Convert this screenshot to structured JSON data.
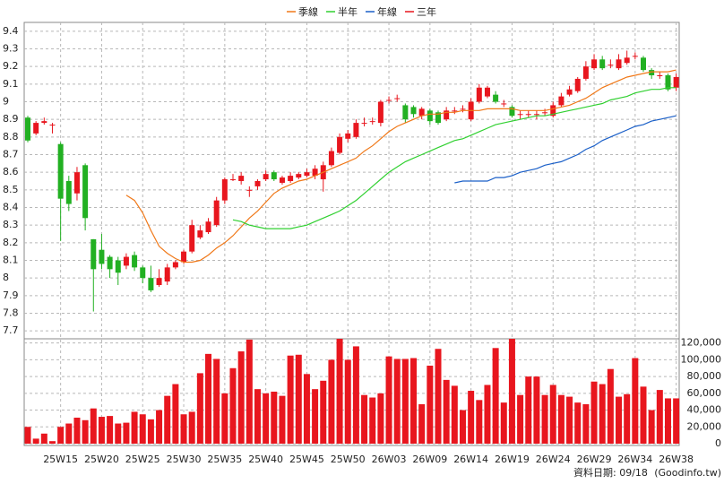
{
  "chart_data": {
    "type": "candlestick",
    "categories": [
      null,
      null,
      null,
      null,
      "25W15",
      null,
      null,
      null,
      null,
      "25W20",
      null,
      null,
      null,
      null,
      "25W25",
      null,
      null,
      null,
      null,
      "25W30",
      null,
      null,
      null,
      null,
      "25W35",
      null,
      null,
      null,
      null,
      "25W40",
      null,
      null,
      null,
      null,
      "25W45",
      null,
      null,
      null,
      null,
      "25W50",
      null,
      null,
      null,
      null,
      "26W03",
      null,
      null,
      null,
      null,
      "26W09",
      null,
      null,
      null,
      null,
      "26W14",
      null,
      null,
      null,
      null,
      "26W19",
      null,
      null,
      null,
      null,
      "26W24",
      null,
      null,
      null,
      null,
      "26W29",
      null,
      null,
      null,
      null,
      "26W34",
      null,
      null,
      null,
      null,
      "26W38"
    ],
    "open": [
      8.91,
      8.82,
      8.88,
      8.87,
      8.76,
      8.55,
      8.48,
      8.64,
      8.22,
      8.16,
      8.12,
      8.1,
      8.07,
      8.13,
      8.06,
      8.0,
      7.96,
      7.98,
      8.06,
      8.09,
      8.15,
      8.23,
      8.26,
      8.3,
      8.44,
      8.56,
      8.55,
      8.5,
      8.52,
      8.56,
      8.6,
      8.54,
      8.55,
      8.57,
      8.58,
      8.58,
      8.56,
      8.64,
      8.71,
      8.79,
      8.8,
      8.88,
      8.89,
      8.88,
      9.01,
      9.02,
      8.98,
      8.97,
      8.92,
      8.95,
      8.94,
      8.9,
      8.95,
      8.96,
      8.9,
      9.0,
      9.03,
      9.04,
      8.99,
      8.97,
      8.93,
      8.93,
      8.93,
      8.94,
      8.92,
      8.98,
      9.04,
      9.06,
      9.13,
      9.19,
      9.24,
      9.21,
      9.19,
      9.22,
      9.26,
      9.25,
      9.18,
      9.15,
      9.15,
      9.08
    ],
    "high": [
      8.92,
      8.89,
      8.91,
      8.88,
      8.77,
      8.58,
      8.63,
      8.65,
      8.22,
      8.25,
      8.13,
      8.12,
      8.14,
      8.15,
      8.07,
      8.07,
      8.05,
      8.08,
      8.1,
      8.16,
      8.33,
      8.3,
      8.34,
      8.46,
      8.57,
      8.59,
      8.6,
      8.52,
      8.56,
      8.61,
      8.61,
      8.58,
      8.6,
      8.6,
      8.62,
      8.64,
      8.66,
      8.74,
      8.82,
      8.84,
      8.9,
      8.91,
      8.91,
      9.01,
      9.03,
      9.04,
      8.99,
      8.98,
      8.97,
      8.96,
      8.95,
      8.97,
      8.97,
      8.98,
      9.02,
      9.1,
      9.09,
      9.06,
      9.01,
      8.98,
      8.95,
      8.95,
      8.95,
      8.96,
      9.0,
      9.05,
      9.09,
      9.14,
      9.23,
      9.27,
      9.26,
      9.24,
      9.27,
      9.29,
      9.28,
      9.26,
      9.19,
      9.17,
      9.16,
      9.16
    ],
    "low": [
      8.77,
      8.81,
      8.87,
      8.82,
      8.21,
      8.38,
      8.44,
      8.27,
      7.81,
      8.05,
      8.0,
      7.96,
      8.05,
      8.04,
      7.97,
      7.92,
      7.95,
      7.96,
      8.05,
      8.08,
      8.14,
      8.22,
      8.25,
      8.29,
      8.42,
      8.55,
      8.53,
      8.46,
      8.5,
      8.55,
      8.55,
      8.53,
      8.54,
      8.56,
      8.57,
      8.56,
      8.49,
      8.63,
      8.7,
      8.77,
      8.79,
      8.86,
      8.87,
      8.86,
      8.99,
      9.0,
      8.88,
      8.91,
      8.9,
      8.87,
      8.87,
      8.89,
      8.93,
      8.94,
      8.89,
      8.99,
      9.02,
      8.99,
      8.97,
      8.91,
      8.9,
      8.91,
      8.9,
      8.92,
      8.91,
      8.97,
      9.03,
      9.05,
      9.12,
      9.18,
      9.18,
      9.19,
      9.18,
      9.21,
      9.24,
      9.17,
      9.13,
      9.13,
      9.06,
      9.06
    ],
    "close": [
      8.78,
      8.88,
      8.89,
      8.87,
      8.45,
      8.42,
      8.6,
      8.34,
      8.05,
      8.08,
      8.05,
      8.03,
      8.12,
      8.06,
      8.0,
      7.93,
      8.0,
      8.06,
      8.09,
      8.15,
      8.3,
      8.27,
      8.32,
      8.44,
      8.56,
      8.56,
      8.58,
      8.5,
      8.55,
      8.59,
      8.56,
      8.57,
      8.58,
      8.59,
      8.6,
      8.62,
      8.64,
      8.72,
      8.8,
      8.82,
      8.88,
      8.88,
      8.89,
      9.0,
      9.01,
      9.02,
      8.9,
      8.93,
      8.96,
      8.89,
      8.88,
      8.95,
      8.95,
      8.96,
      9.0,
      9.08,
      9.08,
      9.0,
      8.99,
      8.92,
      8.93,
      8.93,
      8.93,
      8.94,
      8.98,
      9.03,
      9.07,
      9.13,
      9.2,
      9.24,
      9.19,
      9.21,
      9.24,
      9.25,
      9.26,
      9.18,
      9.15,
      9.15,
      9.07,
      9.14
    ],
    "up_color": "#e8161e",
    "down_color": "#22b022",
    "series": [
      {
        "name": "季線",
        "color": "#f07818",
        "values": [
          null,
          null,
          null,
          null,
          null,
          null,
          null,
          null,
          null,
          null,
          null,
          null,
          8.47,
          8.44,
          8.37,
          8.27,
          8.18,
          8.14,
          8.11,
          8.09,
          8.09,
          8.1,
          8.13,
          8.17,
          8.2,
          8.24,
          8.29,
          8.34,
          8.38,
          8.43,
          8.48,
          8.51,
          8.53,
          8.55,
          8.56,
          8.58,
          8.6,
          8.62,
          8.64,
          8.66,
          8.68,
          8.72,
          8.75,
          8.79,
          8.83,
          8.86,
          8.88,
          8.9,
          8.92,
          8.93,
          8.93,
          8.94,
          8.94,
          8.95,
          8.95,
          8.95,
          8.96,
          8.96,
          8.96,
          8.96,
          8.95,
          8.95,
          8.95,
          8.95,
          8.96,
          8.97,
          8.98,
          9.0,
          9.02,
          9.05,
          9.08,
          9.1,
          9.12,
          9.14,
          9.15,
          9.16,
          9.17,
          9.17,
          9.17,
          9.18
        ]
      },
      {
        "name": "半年",
        "color": "#30d030",
        "values": [
          null,
          null,
          null,
          null,
          null,
          null,
          null,
          null,
          null,
          null,
          null,
          null,
          null,
          null,
          null,
          null,
          null,
          null,
          null,
          null,
          null,
          null,
          null,
          null,
          null,
          8.33,
          8.32,
          8.3,
          8.29,
          8.28,
          8.28,
          8.28,
          8.28,
          8.29,
          8.3,
          8.32,
          8.34,
          8.36,
          8.38,
          8.41,
          8.44,
          8.48,
          8.52,
          8.56,
          8.6,
          8.63,
          8.66,
          8.68,
          8.7,
          8.72,
          8.74,
          8.76,
          8.78,
          8.79,
          8.81,
          8.83,
          8.85,
          8.87,
          8.88,
          8.89,
          8.9,
          8.91,
          8.92,
          8.92,
          8.93,
          8.94,
          8.95,
          8.96,
          8.97,
          8.98,
          8.99,
          9.01,
          9.02,
          9.03,
          9.05,
          9.06,
          9.07,
          9.07,
          9.08,
          9.08
        ]
      },
      {
        "name": "年線",
        "color": "#1a5fc8",
        "values": [
          null,
          null,
          null,
          null,
          null,
          null,
          null,
          null,
          null,
          null,
          null,
          null,
          null,
          null,
          null,
          null,
          null,
          null,
          null,
          null,
          null,
          null,
          null,
          null,
          null,
          null,
          null,
          null,
          null,
          null,
          null,
          null,
          null,
          null,
          null,
          null,
          null,
          null,
          null,
          null,
          null,
          null,
          null,
          null,
          null,
          null,
          null,
          null,
          null,
          null,
          null,
          null,
          8.54,
          8.55,
          8.55,
          8.55,
          8.55,
          8.57,
          8.57,
          8.58,
          8.6,
          8.61,
          8.62,
          8.64,
          8.65,
          8.66,
          8.68,
          8.7,
          8.73,
          8.75,
          8.78,
          8.8,
          8.82,
          8.84,
          8.86,
          8.87,
          8.89,
          8.9,
          8.91,
          8.92
        ]
      },
      {
        "name": "三年",
        "color": "#e8161e"
      }
    ],
    "ylim": [
      7.65,
      9.45
    ],
    "yticks": [
      7.7,
      7.8,
      7.9,
      8,
      8.1,
      8.2,
      8.3,
      8.4,
      8.5,
      8.6,
      8.7,
      8.8,
      8.9,
      9,
      9.1,
      9.2,
      9.3,
      9.4
    ],
    "grid": true,
    "legend": "top",
    "volume": {
      "type": "bar",
      "color": "#e8161e",
      "values": [
        20000,
        6000,
        12000,
        3000,
        20000,
        24000,
        31000,
        28000,
        42000,
        32000,
        33000,
        24000,
        25000,
        38000,
        35000,
        29000,
        40000,
        57000,
        71000,
        35000,
        38000,
        84000,
        107000,
        101000,
        60000,
        90000,
        110000,
        124000,
        65000,
        60000,
        62000,
        57000,
        105000,
        106000,
        83000,
        65000,
        75000,
        100000,
        125000,
        100000,
        116000,
        58000,
        55000,
        60000,
        104000,
        101000,
        101000,
        102000,
        47000,
        93000,
        113000,
        76000,
        69000,
        40000,
        63000,
        52000,
        70000,
        114000,
        49000,
        125000,
        58000,
        80000,
        80000,
        58000,
        70000,
        58000,
        56000,
        49000,
        47000,
        74000,
        71000,
        89000,
        56000,
        59000,
        102000,
        68000,
        40000,
        64000,
        54000,
        54000
      ],
      "ylim": [
        0,
        125000
      ],
      "yticks": [
        0,
        {
          "value": 20000,
          "label": "20,000"
        },
        {
          "value": 40000,
          "label": "40,000"
        },
        {
          "value": 60000,
          "label": "60,000"
        },
        {
          "value": 80000,
          "label": "80,000"
        },
        {
          "value": 100000,
          "label": "100,000"
        },
        {
          "value": 120000,
          "label": "120,000"
        }
      ]
    },
    "date_label": "資料日期: 09/18",
    "source": "(Goodinfo.tw)"
  }
}
